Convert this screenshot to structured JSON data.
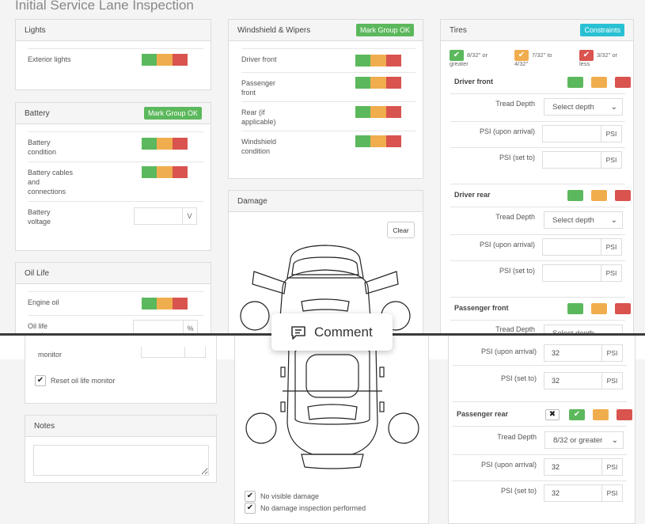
{
  "page": {
    "title": "Initial Service Lane Inspection"
  },
  "lights": {
    "header": "Lights",
    "exterior": "Exterior lights"
  },
  "battery": {
    "header": "Battery",
    "mark_ok": "Mark Group OK",
    "condition": "Battery condition",
    "cables": "Battery cables and connections",
    "voltage": "Battery voltage",
    "voltage_unit": "V"
  },
  "oil": {
    "header": "Oil Life",
    "engine": "Engine oil",
    "life_monitor": "Oil life monitor",
    "pct_unit": "%",
    "monitor_text": "monitor",
    "reset": "Reset oil life monitor"
  },
  "notes": {
    "header": "Notes"
  },
  "windshield": {
    "header": "Windshield & Wipers",
    "mark_ok": "Mark Group OK",
    "driver_front": "Driver front",
    "passenger_front": "Passenger front",
    "rear": "Rear (if applicable)",
    "windshield_condition": "Windshield condition"
  },
  "damage": {
    "header": "Damage",
    "clear": "Clear",
    "no_visible": "No visible damage",
    "no_inspection": "No damage inspection performed"
  },
  "tires": {
    "header": "Tires",
    "constraints": "Constraints",
    "legend_green": "8/32\" or greater",
    "legend_orange": "7/32\" to 4/32\"",
    "legend_red": "3/32\" or less",
    "tread_depth": "Tread Depth",
    "psi_arrival": "PSI (upon arrival)",
    "psi_set": "PSI (set to)",
    "psi_unit": "PSI",
    "select_placeholder": "Select depth",
    "driver_front": "Driver front",
    "driver_rear": "Driver rear",
    "passenger_front": "Passenger front",
    "passenger_rear": "Passenger rear",
    "pf_psi_arrival": "32",
    "pf_psi_set": "32",
    "pr_tread": "8/32 or greater",
    "pr_psi_arrival": "32",
    "pr_psi_set": "32"
  },
  "comment": {
    "label": "Comment"
  },
  "colors": {
    "ok": "#5cb85c",
    "warn": "#f0ad4e",
    "bad": "#d9534f",
    "accent": "#29c0d3"
  }
}
